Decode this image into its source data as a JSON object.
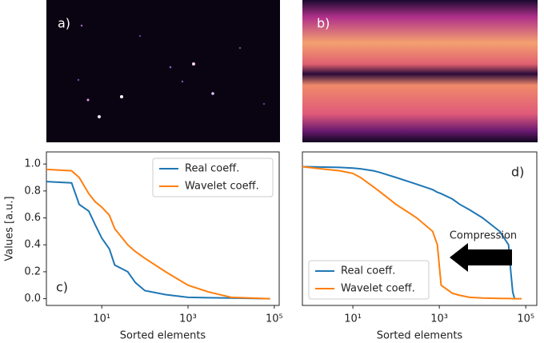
{
  "images": [
    {
      "label": "a)"
    },
    {
      "label": "b)"
    }
  ],
  "chart_data": [
    {
      "type": "line",
      "panel_label": "c)",
      "xlabel": "Sorted elements",
      "ylabel": "Values [a.u.]",
      "xscale": "log",
      "xlim": [
        0.52,
        130000
      ],
      "ylim": [
        -0.05,
        1.09
      ],
      "xticks": [
        {
          "value": 10,
          "label": "10¹"
        },
        {
          "value": 1000,
          "label": "10³"
        },
        {
          "value": 100000,
          "label": "10⁵"
        }
      ],
      "yticks": [
        {
          "value": 0,
          "label": "0.0"
        },
        0.2,
        0.4,
        0.6,
        0.8,
        {
          "value": 1,
          "label": "1.0"
        }
      ],
      "legend": "upper right",
      "x": [
        0.52,
        2,
        3,
        5,
        7,
        10,
        15,
        20,
        40,
        60,
        100,
        300,
        1000,
        3000,
        10000,
        80000
      ],
      "series": [
        {
          "name": "Real coeff.",
          "color": "#1f77b4",
          "values": [
            0.87,
            0.86,
            0.7,
            0.65,
            0.55,
            0.45,
            0.37,
            0.25,
            0.2,
            0.12,
            0.06,
            0.03,
            0.01,
            0.007,
            0.005,
            0
          ]
        },
        {
          "name": "Wavelet coeff.",
          "color": "#ff7f0e",
          "values": [
            0.96,
            0.95,
            0.9,
            0.78,
            0.72,
            0.68,
            0.62,
            0.52,
            0.4,
            0.35,
            0.3,
            0.2,
            0.1,
            0.05,
            0.01,
            0
          ]
        }
      ]
    },
    {
      "type": "line",
      "panel_label": "d)",
      "xlabel": "Sorted elements",
      "annotation": "Compression",
      "xscale": "log",
      "xlim": [
        0.68,
        180000
      ],
      "ylim": [
        -0.05,
        1.09
      ],
      "xticks": [
        {
          "value": 10,
          "label": "10¹"
        },
        {
          "value": 1000,
          "label": "10³"
        },
        {
          "value": 100000,
          "label": "10⁵"
        }
      ],
      "legend": "lower left",
      "x": [
        0.68,
        5,
        10,
        15,
        30,
        40,
        100,
        300,
        700,
        900,
        1100,
        2000,
        3000,
        5000,
        10000,
        25000,
        40000,
        45000,
        50000,
        55000,
        80000
      ],
      "series": [
        {
          "name": "Real coeff.",
          "color": "#1f77b4",
          "values": [
            0.98,
            0.975,
            0.97,
            0.965,
            0.95,
            0.94,
            0.9,
            0.85,
            0.81,
            0.79,
            0.78,
            0.74,
            0.7,
            0.66,
            0.6,
            0.5,
            0.4,
            0.2,
            0.05,
            0,
            null
          ]
        },
        {
          "name": "Wavelet coeff.",
          "color": "#ff7f0e",
          "values": [
            0.98,
            0.95,
            0.93,
            0.9,
            0.83,
            0.8,
            0.7,
            0.6,
            0.5,
            0.4,
            0.1,
            0.04,
            0.025,
            0.01,
            0.005,
            0.002,
            0.001,
            0.001,
            0,
            0,
            0
          ]
        }
      ]
    }
  ]
}
